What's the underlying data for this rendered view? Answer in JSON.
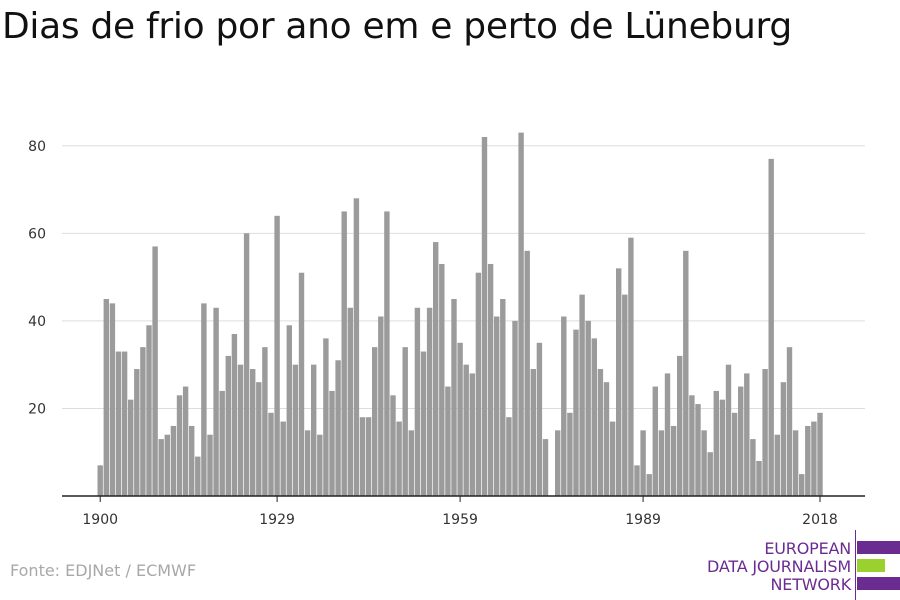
{
  "title": "Dias de frio por ano em e perto de Lüneburg",
  "source": "Fonte: EDJNet / ECMWF",
  "logo": {
    "line1": "EUROPEAN",
    "line2": "DATA JOURNALISM",
    "line3": "NETWORK",
    "colors": {
      "purple": "#6b2c91",
      "green": "#9bd12e"
    }
  },
  "colors": {
    "bar": "#9b9b9b",
    "grid": "#dddddd",
    "axis": "#222222"
  },
  "chart_data": {
    "type": "bar",
    "title": "Dias de frio por ano em e perto de Lüneburg",
    "xlabel": "",
    "ylabel": "",
    "x_tick_labels": [
      "1900",
      "1929",
      "1959",
      "1989",
      "2018"
    ],
    "y_ticks": [
      20,
      40,
      60,
      80
    ],
    "ylim": [
      0,
      88
    ],
    "grid": true,
    "categories": [
      1900,
      1901,
      1902,
      1903,
      1904,
      1905,
      1906,
      1907,
      1908,
      1909,
      1910,
      1911,
      1912,
      1913,
      1914,
      1915,
      1916,
      1917,
      1918,
      1919,
      1920,
      1921,
      1922,
      1923,
      1924,
      1925,
      1926,
      1927,
      1928,
      1929,
      1930,
      1931,
      1932,
      1933,
      1934,
      1935,
      1936,
      1937,
      1938,
      1939,
      1940,
      1941,
      1942,
      1943,
      1944,
      1945,
      1946,
      1947,
      1948,
      1949,
      1950,
      1951,
      1952,
      1953,
      1954,
      1955,
      1956,
      1957,
      1958,
      1959,
      1960,
      1961,
      1962,
      1963,
      1964,
      1965,
      1966,
      1967,
      1968,
      1969,
      1970,
      1971,
      1972,
      1973,
      1974,
      1975,
      1976,
      1977,
      1978,
      1979,
      1980,
      1981,
      1982,
      1983,
      1984,
      1985,
      1986,
      1987,
      1988,
      1989,
      1990,
      1991,
      1992,
      1993,
      1994,
      1995,
      1996,
      1997,
      1998,
      1999,
      2000,
      2001,
      2002,
      2003,
      2004,
      2005,
      2006,
      2007,
      2008,
      2009,
      2010,
      2011,
      2012,
      2013,
      2014,
      2015,
      2016,
      2017,
      2018
    ],
    "values": [
      7,
      45,
      44,
      33,
      33,
      22,
      29,
      34,
      39,
      57,
      13,
      14,
      16,
      23,
      25,
      16,
      9,
      44,
      14,
      43,
      24,
      32,
      37,
      30,
      60,
      29,
      26,
      34,
      19,
      64,
      17,
      39,
      30,
      51,
      15,
      30,
      14,
      36,
      24,
      31,
      65,
      43,
      68,
      18,
      18,
      34,
      41,
      65,
      23,
      17,
      34,
      15,
      43,
      33,
      43,
      58,
      53,
      25,
      45,
      35,
      30,
      28,
      51,
      82,
      53,
      41,
      45,
      18,
      40,
      83,
      56,
      29,
      35,
      13,
      0,
      15,
      41,
      19,
      38,
      46,
      40,
      36,
      29,
      26,
      17,
      52,
      46,
      59,
      7,
      15,
      5,
      25,
      15,
      28,
      16,
      32,
      56,
      23,
      21,
      15,
      10,
      24,
      22,
      30,
      19,
      25,
      28,
      13,
      8,
      29,
      77,
      14,
      26,
      34,
      15,
      5,
      16,
      17,
      19
    ]
  }
}
